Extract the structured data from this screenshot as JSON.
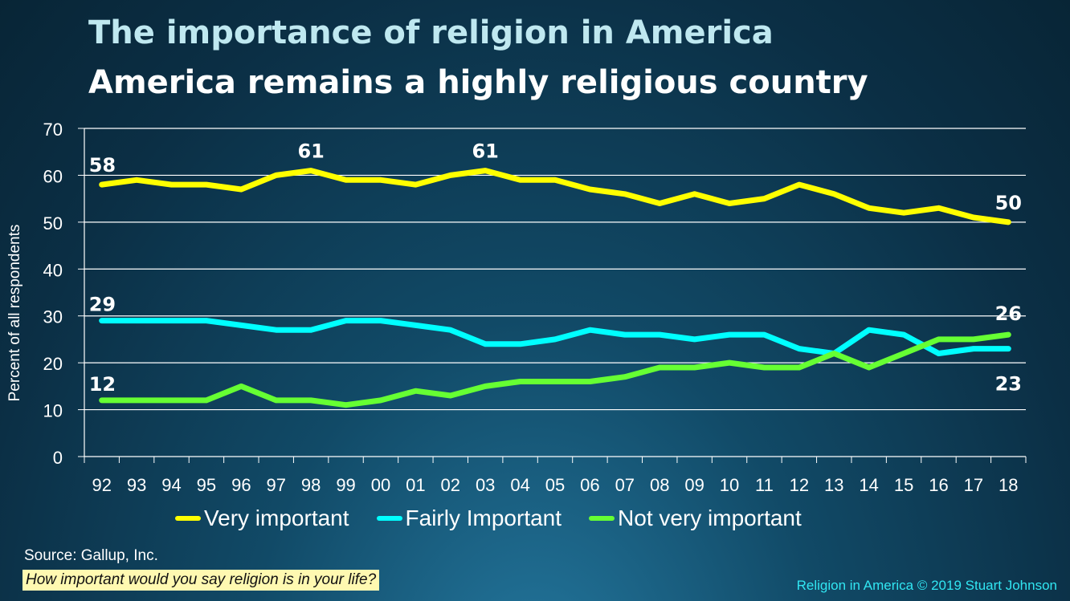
{
  "title": "The importance of religion in America",
  "subtitle": "America remains a highly religious country",
  "source": "Source: Gallup, Inc.",
  "question": "How important would you say religion is in your life?",
  "credit": "Religion in America © 2019 Stuart Johnson",
  "chart_data": {
    "type": "line",
    "ylabel": "Percent of all respondents",
    "xlabel": "",
    "ylim": [
      0,
      70
    ],
    "yticks": [
      0,
      10,
      20,
      30,
      40,
      50,
      60,
      70
    ],
    "grid": true,
    "legend_position": "bottom",
    "categories": [
      "92",
      "93",
      "94",
      "95",
      "96",
      "97",
      "98",
      "99",
      "00",
      "01",
      "02",
      "03",
      "04",
      "05",
      "06",
      "07",
      "08",
      "09",
      "10",
      "11",
      "12",
      "13",
      "14",
      "15",
      "16",
      "17",
      "18"
    ],
    "series": [
      {
        "name": "Very important",
        "color": "#ffff00",
        "values": [
          58,
          59,
          58,
          58,
          57,
          60,
          61,
          59,
          59,
          58,
          60,
          61,
          59,
          59,
          57,
          56,
          54,
          56,
          54,
          55,
          58,
          56,
          53,
          52,
          53,
          51,
          50
        ],
        "labels": [
          {
            "index": 0,
            "text": "58"
          },
          {
            "index": 6,
            "text": "61"
          },
          {
            "index": 11,
            "text": "61"
          },
          {
            "index": 26,
            "text": "50"
          }
        ]
      },
      {
        "name": "Fairly Important",
        "color": "#00ffff",
        "values": [
          29,
          29,
          29,
          29,
          28,
          27,
          27,
          29,
          29,
          28,
          27,
          24,
          24,
          25,
          27,
          26,
          26,
          25,
          26,
          26,
          23,
          22,
          27,
          26,
          22,
          23,
          23
        ],
        "labels": [
          {
            "index": 0,
            "text": "29"
          },
          {
            "index": 26,
            "text": "23"
          }
        ]
      },
      {
        "name": "Not very important",
        "color": "#66ff33",
        "values": [
          12,
          12,
          12,
          12,
          15,
          12,
          12,
          11,
          12,
          14,
          13,
          15,
          16,
          16,
          16,
          17,
          19,
          19,
          20,
          19,
          19,
          22,
          19,
          22,
          25,
          25,
          26
        ],
        "labels": [
          {
            "index": 0,
            "text": "12"
          },
          {
            "index": 26,
            "text": "26"
          }
        ]
      }
    ]
  }
}
